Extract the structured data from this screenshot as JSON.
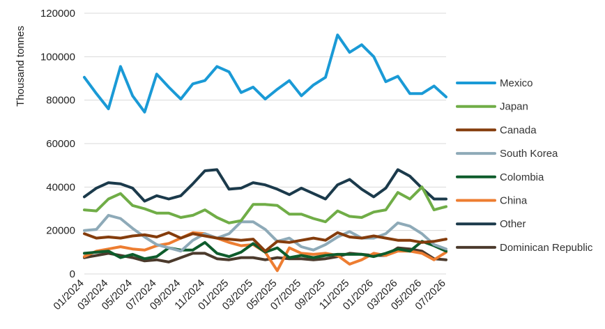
{
  "chart_data": {
    "type": "line",
    "title": "",
    "xlabel": "",
    "ylabel": "Thousand tonnes",
    "ylim": [
      0,
      120000
    ],
    "yticks": [
      0,
      20000,
      40000,
      60000,
      80000,
      100000,
      120000
    ],
    "ytick_labels": [
      "0",
      "20000",
      "40000",
      "60000",
      "80000",
      "100000",
      "120000"
    ],
    "grid": "horizontal",
    "legend": "right",
    "x": [
      "01/2024",
      "02/2024",
      "03/2024",
      "04/2024",
      "05/2024",
      "06/2024",
      "07/2024",
      "08/2024",
      "09/2024",
      "10/2024",
      "11/2024",
      "12/2024",
      "01/2025",
      "02/2025",
      "03/2025",
      "04/2025",
      "05/2025",
      "06/2025",
      "07/2025",
      "08/2025",
      "09/2025",
      "10/2025",
      "11/2025",
      "12/2025",
      "01/2026",
      "02/2026",
      "03/2026",
      "04/2026",
      "05/2026",
      "06/2026",
      "07/2026"
    ],
    "xtick_labels": [
      "01/2024",
      "03/2024",
      "05/2024",
      "07/2024",
      "09/2024",
      "11/2024",
      "01/2025",
      "03/2025",
      "05/2025",
      "07/2025",
      "09/2025",
      "11/2025",
      "01/2026",
      "03/2026",
      "05/2026",
      "07/2026"
    ],
    "series": [
      {
        "name": "Mexico",
        "color": "#1a9ad6",
        "values": [
          90500,
          83000,
          76000,
          95500,
          82000,
          74500,
          92000,
          86000,
          80500,
          87500,
          89000,
          95500,
          93000,
          83500,
          86000,
          80500,
          85000,
          89000,
          82000,
          87000,
          90500,
          110000,
          102000,
          105500,
          100000,
          88500,
          91000,
          83000,
          83000,
          86500,
          81500
        ]
      },
      {
        "name": "Japan",
        "color": "#70ad47",
        "values": [
          29500,
          29000,
          34500,
          37000,
          31500,
          30000,
          28000,
          28000,
          26000,
          27000,
          29500,
          26000,
          23500,
          24500,
          32000,
          32000,
          31500,
          27500,
          27500,
          25500,
          24000,
          29000,
          26500,
          26000,
          28500,
          29500,
          37500,
          34500,
          40000,
          29500,
          31000
        ]
      },
      {
        "name": "Canada",
        "color": "#843c0c",
        "values": [
          18500,
          16500,
          17000,
          16500,
          17500,
          18000,
          17000,
          19000,
          16500,
          18500,
          17500,
          16500,
          16000,
          15500,
          16000,
          10500,
          15000,
          14500,
          15500,
          16500,
          15500,
          19000,
          17000,
          16500,
          17500,
          16500,
          15500,
          15500,
          14500,
          15000,
          16000
        ]
      },
      {
        "name": "South Korea",
        "color": "#8eaab8",
        "values": [
          20000,
          20500,
          27000,
          25500,
          21000,
          17000,
          13500,
          12000,
          10500,
          15500,
          18500,
          16500,
          18500,
          24000,
          24000,
          20500,
          15000,
          16500,
          12500,
          11000,
          13500,
          17000,
          19500,
          16500,
          16500,
          18500,
          23500,
          22000,
          18500,
          13500,
          11500
        ]
      },
      {
        "name": "Colombia",
        "color": "#0e5c2c",
        "values": [
          9500,
          10000,
          10500,
          7500,
          9000,
          7000,
          8000,
          12000,
          11000,
          11000,
          14500,
          9500,
          8000,
          10000,
          14000,
          10000,
          12000,
          7500,
          8500,
          7500,
          8500,
          9000,
          9000,
          9000,
          8000,
          9500,
          11500,
          10500,
          15000,
          13000,
          10500
        ]
      },
      {
        "name": "China",
        "color": "#ed7d31",
        "values": [
          8000,
          10500,
          11500,
          12500,
          11500,
          11000,
          13000,
          14000,
          16500,
          19000,
          18500,
          16500,
          14500,
          13000,
          13500,
          10000,
          1500,
          12000,
          9500,
          9000,
          9500,
          8500,
          4500,
          6500,
          9500,
          8500,
          10500,
          10500,
          9500,
          6500,
          10000
        ]
      },
      {
        "name": "Other",
        "color": "#1b3a4b",
        "values": [
          35500,
          39500,
          42000,
          41500,
          39500,
          33500,
          36000,
          34500,
          36000,
          41500,
          47500,
          48000,
          39000,
          39500,
          42000,
          41000,
          39000,
          36500,
          39500,
          37000,
          34500,
          41000,
          43500,
          39000,
          35500,
          39500,
          48000,
          45000,
          39500,
          34500,
          34500
        ]
      },
      {
        "name": "Dominican Republic",
        "color": "#4b3a2c",
        "values": [
          7500,
          8500,
          9500,
          8500,
          7500,
          6000,
          6500,
          5500,
          7500,
          9500,
          9500,
          7000,
          6500,
          7500,
          7500,
          6500,
          7500,
          7000,
          7000,
          6500,
          7000,
          8000,
          9500,
          9000,
          8500,
          8500,
          12000,
          11500,
          10500,
          7000,
          6500
        ]
      }
    ]
  }
}
